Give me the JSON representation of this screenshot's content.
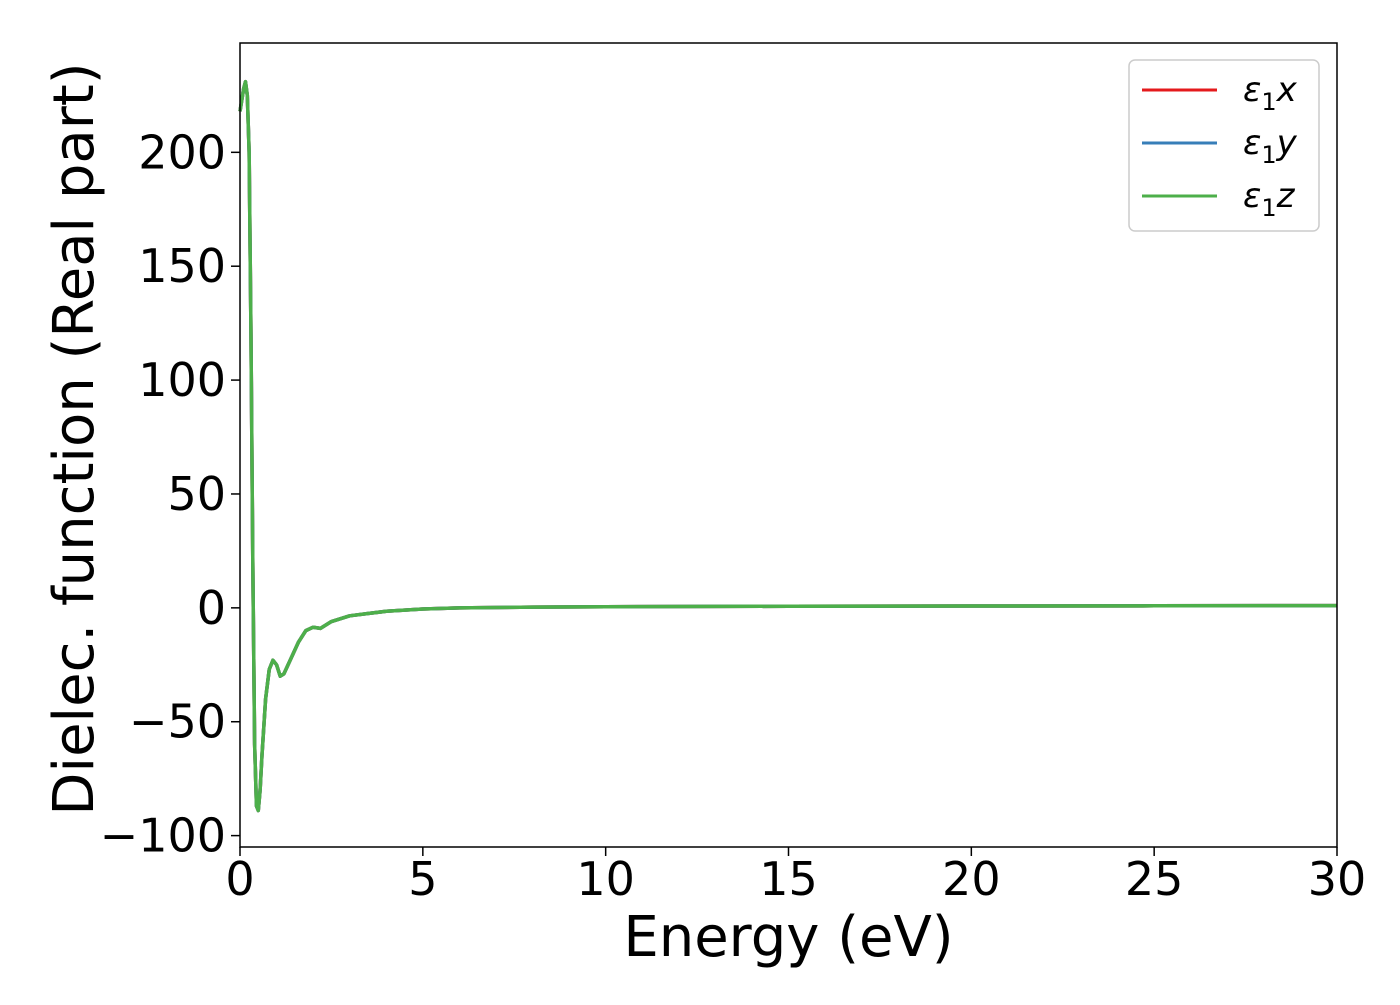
{
  "chart_data": {
    "type": "line",
    "title": "",
    "xlabel": "Energy (eV)",
    "ylabel": "Dielec. function (Real part)",
    "xlim": [
      0,
      30
    ],
    "ylim": [
      -105,
      248
    ],
    "xticks": [
      0,
      5,
      10,
      15,
      20,
      25,
      30
    ],
    "xtick_labels": [
      "0",
      "5",
      "10",
      "15",
      "20",
      "25",
      "30"
    ],
    "yticks": [
      -100,
      -50,
      0,
      50,
      100,
      150,
      200
    ],
    "ytick_labels": [
      "−100",
      "−50",
      "0",
      "50",
      "100",
      "150",
      "200"
    ],
    "grid": false,
    "legend_position": "top-right",
    "series": [
      {
        "name": "ε1x",
        "legend_main": "ε",
        "legend_sub": "1",
        "legend_var": "x",
        "color": "#e41a1c",
        "x": [
          0,
          0.1,
          0.15,
          0.2,
          0.25,
          0.3,
          0.35,
          0.4,
          0.45,
          0.5,
          0.55,
          0.6,
          0.7,
          0.8,
          0.9,
          1.0,
          1.1,
          1.2,
          1.4,
          1.6,
          1.8,
          2.0,
          2.2,
          2.5,
          3.0,
          3.5,
          4.0,
          5.0,
          6.0,
          8.0,
          10.0,
          12.0,
          15.0,
          20.0,
          25.0,
          30.0
        ],
        "y": [
          218,
          228,
          231,
          225,
          200,
          120,
          20,
          -60,
          -87,
          -89,
          -80,
          -65,
          -40,
          -27,
          -23,
          -25,
          -30,
          -29,
          -22,
          -15,
          -10,
          -8.5,
          -9,
          -6,
          -3.5,
          -2.5,
          -1.5,
          -0.5,
          0,
          0.3,
          0.5,
          0.6,
          0.7,
          0.8,
          0.9,
          1.0
        ]
      },
      {
        "name": "ε1y",
        "legend_main": "ε",
        "legend_sub": "1",
        "legend_var": "y",
        "color": "#377eb8",
        "x": [
          0,
          0.1,
          0.15,
          0.2,
          0.25,
          0.3,
          0.35,
          0.4,
          0.45,
          0.5,
          0.55,
          0.6,
          0.7,
          0.8,
          0.9,
          1.0,
          1.1,
          1.2,
          1.4,
          1.6,
          1.8,
          2.0,
          2.2,
          2.5,
          3.0,
          3.5,
          4.0,
          5.0,
          6.0,
          8.0,
          10.0,
          12.0,
          15.0,
          20.0,
          25.0,
          30.0
        ],
        "y": [
          218,
          228,
          231,
          225,
          200,
          120,
          20,
          -60,
          -87,
          -89,
          -80,
          -65,
          -40,
          -27,
          -23,
          -25,
          -30,
          -29,
          -22,
          -15,
          -10,
          -8.5,
          -9,
          -6,
          -3.5,
          -2.5,
          -1.5,
          -0.5,
          0,
          0.3,
          0.5,
          0.6,
          0.7,
          0.8,
          0.9,
          1.0
        ]
      },
      {
        "name": "ε1z",
        "legend_main": "ε",
        "legend_sub": "1",
        "legend_var": "z",
        "color": "#4daf4a",
        "x": [
          0,
          0.1,
          0.15,
          0.2,
          0.25,
          0.3,
          0.35,
          0.4,
          0.45,
          0.5,
          0.55,
          0.6,
          0.7,
          0.8,
          0.9,
          1.0,
          1.1,
          1.2,
          1.4,
          1.6,
          1.8,
          2.0,
          2.2,
          2.5,
          3.0,
          3.5,
          4.0,
          5.0,
          6.0,
          8.0,
          10.0,
          12.0,
          15.0,
          20.0,
          25.0,
          30.0
        ],
        "y": [
          218,
          228,
          231,
          225,
          200,
          120,
          20,
          -60,
          -87,
          -89,
          -80,
          -65,
          -40,
          -27,
          -23,
          -25,
          -30,
          -29,
          -22,
          -15,
          -10,
          -8.5,
          -9,
          -6,
          -3.5,
          -2.5,
          -1.5,
          -0.5,
          0,
          0.3,
          0.5,
          0.6,
          0.7,
          0.8,
          0.9,
          1.0
        ]
      }
    ]
  }
}
